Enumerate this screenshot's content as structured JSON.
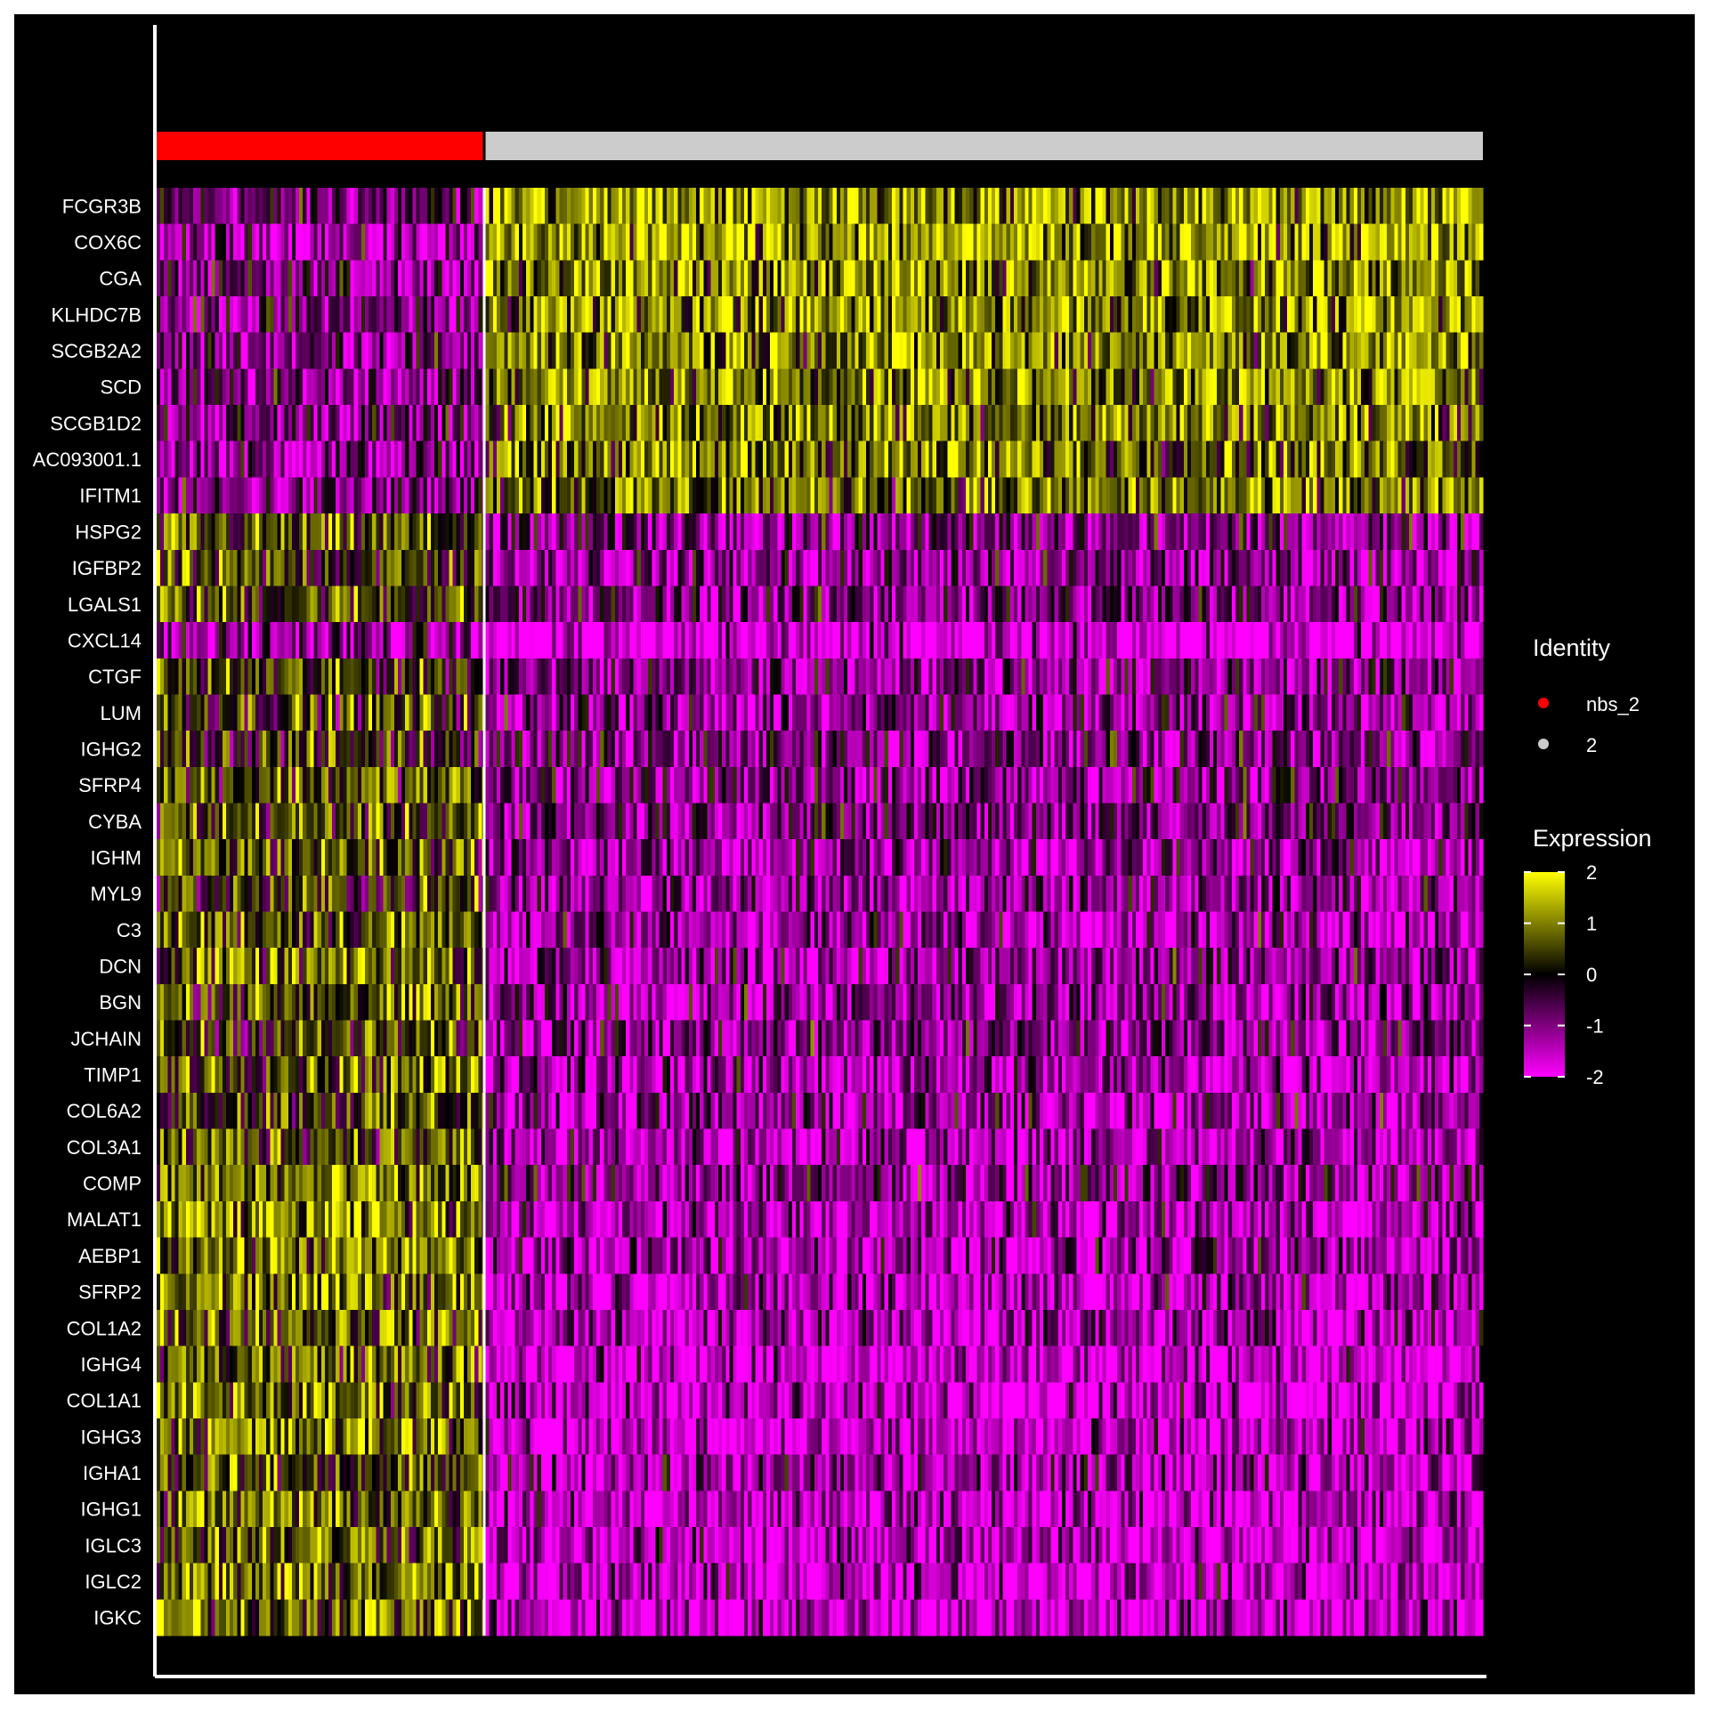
{
  "chart_data": {
    "type": "heatmap",
    "title": "",
    "xlabel": "",
    "ylabel": "",
    "genes": [
      "FCGR3B",
      "COX6C",
      "CGA",
      "KLHDC7B",
      "SCGB2A2",
      "SCD",
      "SCGB1D2",
      "AC093001.1",
      "IFITM1",
      "HSPG2",
      "IGFBP2",
      "LGALS1",
      "CXCL14",
      "CTGF",
      "LUM",
      "IGHG2",
      "SFRP4",
      "CYBA",
      "IGHM",
      "MYL9",
      "C3",
      "DCN",
      "BGN",
      "JCHAIN",
      "TIMP1",
      "COL6A2",
      "COL3A1",
      "COMP",
      "MALAT1",
      "AEBP1",
      "SFRP2",
      "COL1A2",
      "IGHG4",
      "COL1A1",
      "IGHG3",
      "IGHA1",
      "IGHG1",
      "IGLC3",
      "IGLC2",
      "IGKC"
    ],
    "groups": [
      {
        "name": "nbs_2",
        "color": "#ff0000",
        "fraction": 0.248
      },
      {
        "name": "2",
        "color": "#cccccc",
        "fraction": 0.752
      }
    ],
    "group_mean_expression": {
      "nbs_2": [
        -0.8,
        -1.3,
        -1.0,
        -0.9,
        -0.9,
        -1.0,
        -0.9,
        -1.2,
        -1.1,
        0.4,
        0.3,
        0.5,
        -1.2,
        0.3,
        0.4,
        0.2,
        0.6,
        0.5,
        0.6,
        0.2,
        0.7,
        0.7,
        0.6,
        0.3,
        0.8,
        0.5,
        0.6,
        0.8,
        1.0,
        0.9,
        0.9,
        0.8,
        0.7,
        0.8,
        0.9,
        0.4,
        0.8,
        0.8,
        0.8,
        0.9
      ],
      "2": [
        1.2,
        1.3,
        1.0,
        1.1,
        1.1,
        1.0,
        1.0,
        0.9,
        0.8,
        -1.0,
        -1.1,
        -0.9,
        -1.9,
        -1.0,
        -1.1,
        -1.0,
        -1.0,
        -0.8,
        -1.2,
        -1.1,
        -1.2,
        -1.2,
        -1.2,
        -1.0,
        -1.3,
        -1.2,
        -1.3,
        -1.0,
        -1.5,
        -1.3,
        -1.4,
        -1.4,
        -1.6,
        -1.6,
        -1.7,
        -1.3,
        -1.6,
        -1.5,
        -1.6,
        -1.6
      ]
    },
    "color_scale": {
      "min": -2,
      "max": 2,
      "stops": [
        {
          "value": -2,
          "color": "#ff00ff"
        },
        {
          "value": 0,
          "color": "#000000"
        },
        {
          "value": 2,
          "color": "#ffff00"
        }
      ]
    },
    "legend": {
      "placement": "right",
      "identity_title": "Identity",
      "identity_items": [
        "nbs_2",
        "2"
      ],
      "expression_title": "Expression",
      "expression_ticks": [
        "2",
        "1",
        "0",
        "-1",
        "-2"
      ]
    }
  }
}
